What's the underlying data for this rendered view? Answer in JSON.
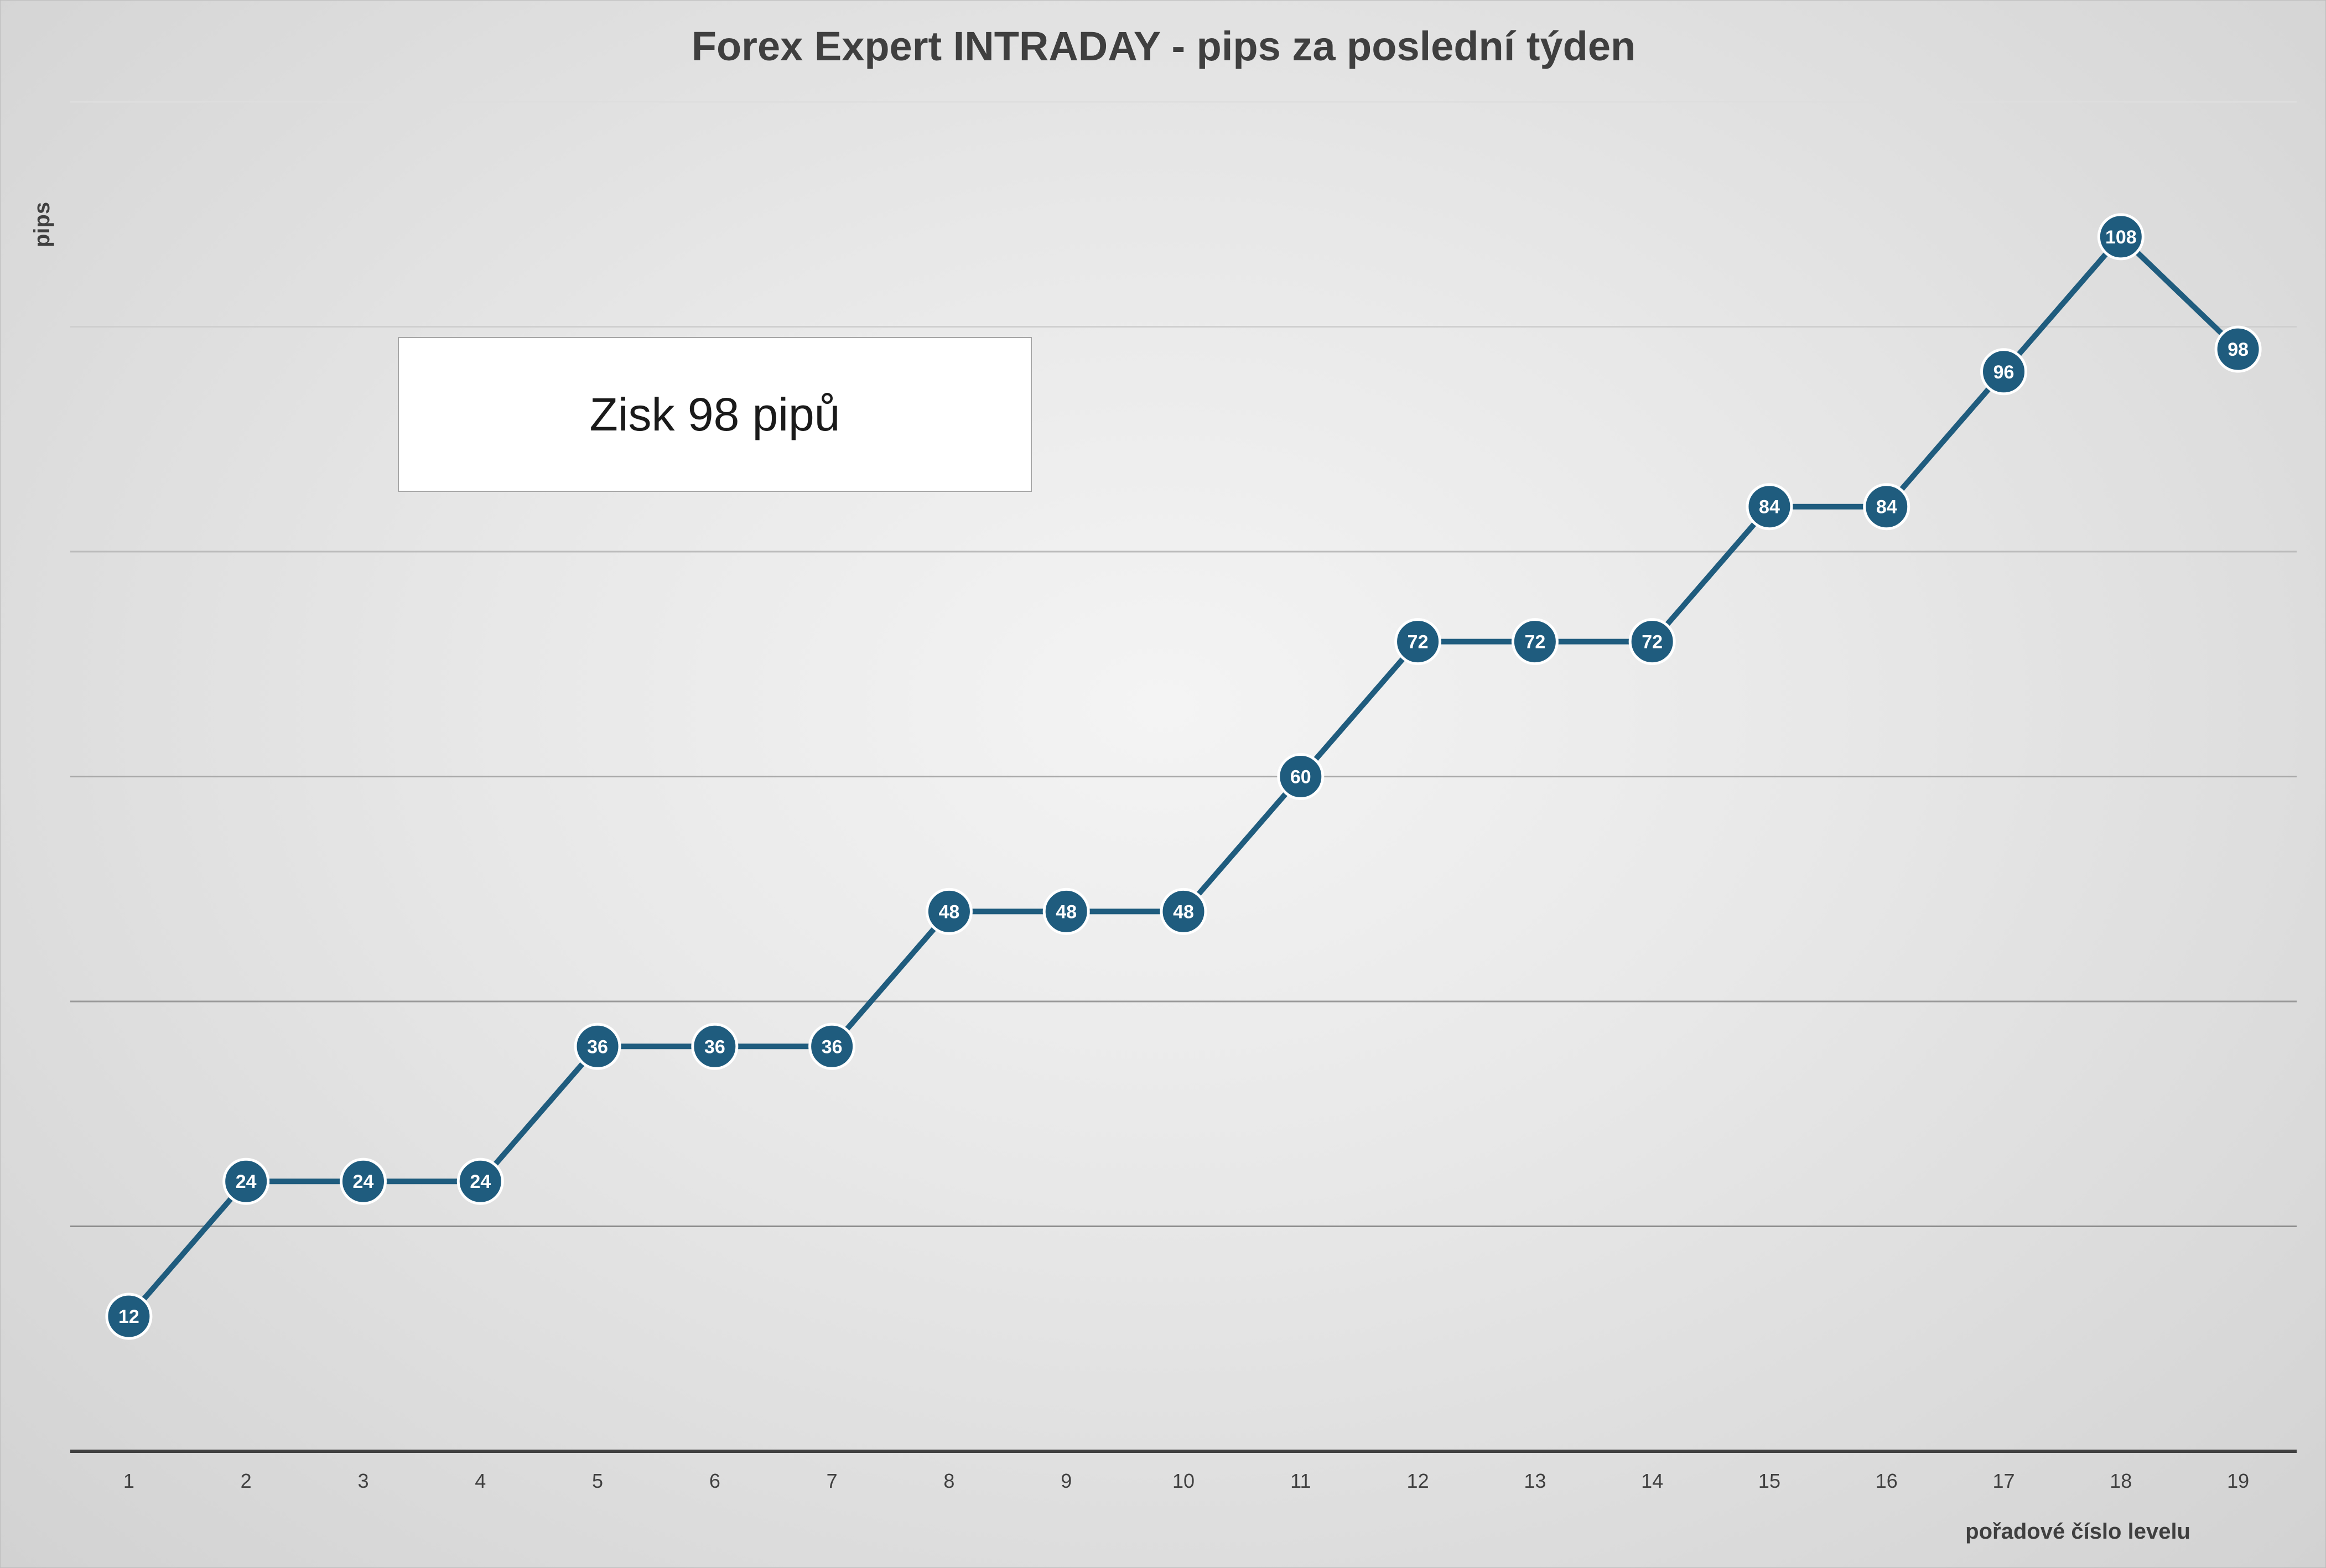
{
  "chart_data": {
    "type": "line",
    "title": "Forex Expert INTRADAY - pips za poslední týden",
    "xlabel": "pořadové číslo levelu",
    "ylabel": "pips",
    "categories": [
      "1",
      "2",
      "3",
      "4",
      "5",
      "6",
      "7",
      "8",
      "9",
      "10",
      "11",
      "12",
      "13",
      "14",
      "15",
      "16",
      "17",
      "18",
      "19"
    ],
    "series": [
      {
        "values": [
          12,
          24,
          24,
          24,
          36,
          36,
          36,
          48,
          48,
          48,
          60,
          72,
          72,
          72,
          84,
          84,
          96,
          108,
          98
        ],
        "color": "#1f5c7e",
        "data_labels": true
      }
    ],
    "ylim": [
      0,
      120
    ],
    "y_gridlines": [
      20,
      40,
      60,
      80,
      100,
      120
    ],
    "y_tick_labels_shown": false,
    "grid": true,
    "legend": "none",
    "annotation": "Zisk 98 pipů"
  }
}
